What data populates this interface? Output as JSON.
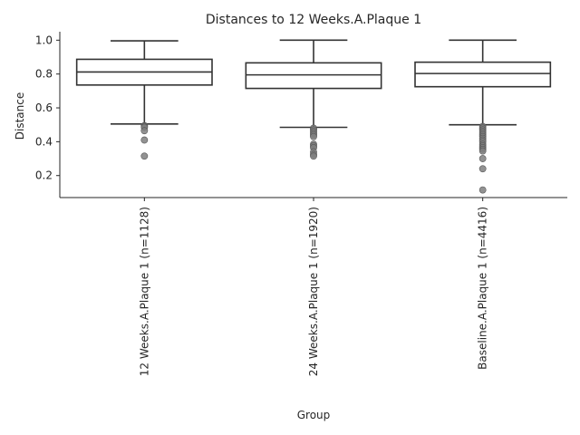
{
  "chart_data": {
    "type": "box",
    "title": "Distances to 12 Weeks.A.Plaque 1",
    "xlabel": "Group",
    "ylabel": "Distance",
    "ylim": [
      0.07,
      1.05
    ],
    "yticks": [
      "0.2",
      "0.4",
      "0.6",
      "0.8",
      "1.0"
    ],
    "ytick_values": [
      0.2,
      0.4,
      0.6,
      0.8,
      1.0
    ],
    "grid": false,
    "categories": [
      "12 Weeks.A.Plaque 1 (n=1128)",
      "24 Weeks.A.Plaque 1 (n=1920)",
      "Baseline.A.Plaque 1 (n=4416)"
    ],
    "boxes": [
      {
        "whisker_low": 0.505,
        "q1": 0.735,
        "median": 0.812,
        "q3": 0.887,
        "whisker_high": 0.996,
        "fliers": [
          0.495,
          0.49,
          0.485,
          0.465,
          0.41,
          0.315
        ]
      },
      {
        "whisker_low": 0.485,
        "q1": 0.715,
        "median": 0.795,
        "q3": 0.866,
        "whisker_high": 1.0,
        "fliers": [
          0.48,
          0.47,
          0.46,
          0.45,
          0.44,
          0.43,
          0.385,
          0.375,
          0.365,
          0.34,
          0.325,
          0.315
        ]
      },
      {
        "whisker_low": 0.5,
        "q1": 0.725,
        "median": 0.803,
        "q3": 0.87,
        "whisker_high": 1.0,
        "fliers": [
          0.49,
          0.48,
          0.47,
          0.46,
          0.45,
          0.44,
          0.43,
          0.42,
          0.41,
          0.4,
          0.385,
          0.375,
          0.365,
          0.355,
          0.345,
          0.3,
          0.24,
          0.115
        ]
      }
    ]
  }
}
